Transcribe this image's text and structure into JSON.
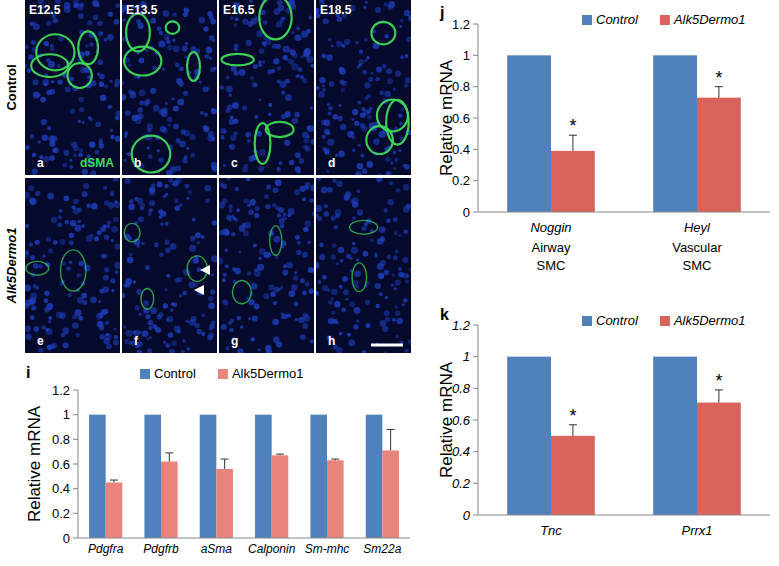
{
  "image_panels": {
    "column_labels": [
      "E12.5",
      "E13.5",
      "E16.5",
      "E18.5"
    ],
    "row_labels": [
      "Control",
      "Alk5Dermo1"
    ],
    "panel_letters": [
      [
        "a",
        "b",
        "c",
        "d"
      ],
      [
        "e",
        "f",
        "g",
        "h"
      ]
    ],
    "stain_label": "dSMA"
  },
  "chart_data": [
    {
      "type": "bar",
      "panel_label": "i",
      "y_label": "Relative mRNA",
      "categories": [
        "Pdgfra",
        "Pdgfrb",
        "aSma",
        "Calponin",
        "Sm-mhc",
        "Sm22a"
      ],
      "series": [
        {
          "name": "Control",
          "color": "#4f81bd",
          "values": [
            1,
            1,
            1,
            1,
            1,
            1
          ]
        },
        {
          "name": "Alk5Dermo1",
          "color": "#e8847c",
          "values": [
            0.45,
            0.62,
            0.56,
            0.67,
            0.63,
            0.71
          ],
          "errors": [
            0.02,
            0.07,
            0.08,
            0.01,
            0.01,
            0.17
          ]
        }
      ],
      "ylim": [
        0,
        1.2
      ],
      "yticks": [
        0,
        0.2,
        0.4,
        0.6,
        0.8,
        1,
        1.2
      ],
      "legend": "top"
    },
    {
      "type": "bar",
      "panel_label": "j",
      "y_label": "Relative mRNA",
      "categories": [
        "Noggin",
        "Heyl"
      ],
      "group_labels": [
        "Airway SMC",
        "Vascular SMC"
      ],
      "series": [
        {
          "name": "Control",
          "color": "#4f81bd",
          "values": [
            1,
            1
          ]
        },
        {
          "name": "Alk5Dermo1",
          "color": "#d9645c",
          "values": [
            0.39,
            0.73
          ],
          "errors": [
            0.1,
            0.07
          ],
          "significance": [
            "*",
            "*"
          ]
        }
      ],
      "ylim": [
        0,
        1.2
      ],
      "yticks": [
        0,
        0.2,
        0.4,
        0.6,
        0.8,
        1,
        1.2
      ],
      "legend": "top-right"
    },
    {
      "type": "bar",
      "panel_label": "k",
      "y_label": "Relative mRNA",
      "categories": [
        "Tnc",
        "Prrx1"
      ],
      "series": [
        {
          "name": "Control",
          "color": "#4f81bd",
          "values": [
            1,
            1
          ]
        },
        {
          "name": "Alk5Dermo1",
          "color": "#d9645c",
          "values": [
            0.5,
            0.71
          ],
          "errors": [
            0.07,
            0.08
          ],
          "significance": [
            "*",
            "*"
          ]
        }
      ],
      "ylim": [
        0,
        1.2
      ],
      "yticks": [
        0,
        0.2,
        0.4,
        0.6,
        0.8,
        1,
        1.2
      ],
      "legend": "top-right"
    }
  ]
}
